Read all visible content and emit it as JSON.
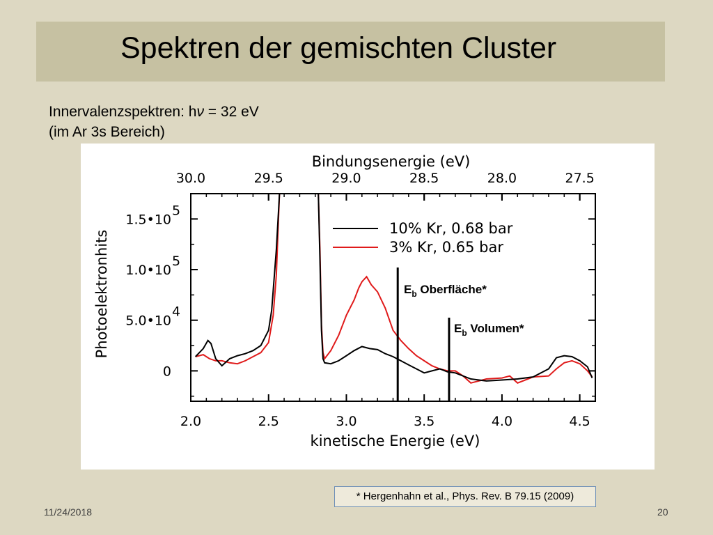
{
  "slide": {
    "title": "Spektren der gemischten Cluster",
    "subtitle_line1_pre": "Innervalenzspektren: h",
    "subtitle_line1_nu": "ν",
    "subtitle_line1_post": " = 32 eV",
    "subtitle_line2": "(im Ar 3s Bereich)",
    "reference": "* Hergenhahn et al., Phys. Rev. B 79.15 (2009)",
    "date": "11/24/2018",
    "page_number": "20"
  },
  "colors": {
    "background": "#ddd8c2",
    "title_bar": "#c6c1a2",
    "series_10": "#000000",
    "series_3": "#e01b1b"
  },
  "chart_data": {
    "type": "line",
    "xlabel": "kinetische Energie (eV)",
    "top_xlabel": "Bindungsenergie (eV)",
    "ylabel": "Photoelektronhits",
    "xlim": [
      2.0,
      4.6
    ],
    "ylim": [
      -30000,
      175000
    ],
    "x_ticks": [
      2.0,
      2.5,
      3.0,
      3.5,
      4.0,
      4.5
    ],
    "x_tick_labels": [
      "2.0",
      "2.5",
      "3.0",
      "3.5",
      "4.0",
      "4.5"
    ],
    "top_ticks": [
      30.0,
      29.5,
      29.0,
      28.5,
      28.0,
      27.5
    ],
    "top_tick_labels": [
      "30.0",
      "29.5",
      "29.0",
      "28.5",
      "28.0",
      "27.5"
    ],
    "top_axis_offset": 32.0,
    "y_ticks": [
      0,
      50000,
      100000,
      150000
    ],
    "y_tick_labels": [
      {
        "mant": "0",
        "exp": ""
      },
      {
        "mant": "5.0•10",
        "exp": "4"
      },
      {
        "mant": "1.0•10",
        "exp": "5"
      },
      {
        "mant": "1.5•10",
        "exp": "5"
      }
    ],
    "legend_position": "top-right",
    "series": [
      {
        "name": "10% Kr, 0.68 bar",
        "color": "#000000",
        "x": [
          2.03,
          2.08,
          2.11,
          2.13,
          2.16,
          2.2,
          2.25,
          2.3,
          2.35,
          2.4,
          2.45,
          2.5,
          2.52,
          2.55,
          2.57,
          2.58,
          2.6,
          2.82,
          2.83,
          2.84,
          2.85,
          2.86,
          2.9,
          2.95,
          3.0,
          3.05,
          3.1,
          3.15,
          3.2,
          3.25,
          3.3,
          3.35,
          3.4,
          3.45,
          3.5,
          3.55,
          3.6,
          3.65,
          3.7,
          3.8,
          3.9,
          4.0,
          4.1,
          4.2,
          4.3,
          4.35,
          4.4,
          4.45,
          4.5,
          4.55,
          4.58
        ],
        "y": [
          14000,
          22000,
          30000,
          27000,
          12000,
          5000,
          12000,
          15000,
          17000,
          20000,
          25000,
          40000,
          60000,
          120000,
          175000,
          175000,
          175000,
          175000,
          110000,
          40000,
          12000,
          8000,
          7000,
          10000,
          15000,
          20000,
          24000,
          22000,
          21000,
          17000,
          14000,
          10000,
          6000,
          2000,
          -2000,
          0,
          2000,
          -1000,
          -2000,
          -8000,
          -10000,
          -9000,
          -8000,
          -6000,
          2000,
          13000,
          15000,
          14000,
          10000,
          4000,
          -7000
        ]
      },
      {
        "name": "3% Kr, 0.65 bar",
        "color": "#e01b1b",
        "x": [
          2.03,
          2.08,
          2.12,
          2.16,
          2.2,
          2.25,
          2.3,
          2.35,
          2.4,
          2.45,
          2.5,
          2.53,
          2.55,
          2.56,
          2.57,
          2.58,
          2.6,
          2.82,
          2.83,
          2.84,
          2.85,
          2.86,
          2.9,
          2.95,
          3.0,
          3.05,
          3.08,
          3.1,
          3.13,
          3.16,
          3.2,
          3.25,
          3.3,
          3.35,
          3.4,
          3.45,
          3.5,
          3.55,
          3.6,
          3.65,
          3.7,
          3.75,
          3.8,
          3.9,
          4.0,
          4.05,
          4.1,
          4.2,
          4.3,
          4.35,
          4.4,
          4.45,
          4.5,
          4.55,
          4.58
        ],
        "y": [
          14000,
          16000,
          12000,
          10000,
          10000,
          8000,
          7000,
          10000,
          14000,
          18000,
          28000,
          55000,
          95000,
          135000,
          175000,
          175000,
          175000,
          175000,
          120000,
          45000,
          18000,
          12000,
          20000,
          35000,
          55000,
          70000,
          82000,
          88000,
          93000,
          85000,
          78000,
          62000,
          40000,
          30000,
          22000,
          15000,
          10000,
          5000,
          2000,
          0,
          0,
          -5000,
          -12000,
          -8000,
          -7000,
          -5000,
          -12000,
          -6000,
          -5000,
          2000,
          8000,
          10000,
          7000,
          0,
          -6000
        ]
      }
    ],
    "annotations": [
      {
        "label_main": "E",
        "label_sub": "b",
        "label_rest": " Oberfläche*",
        "x": 3.33
      },
      {
        "label_main": "E",
        "label_sub": "b",
        "label_rest": " Volumen*",
        "x": 3.66
      }
    ]
  }
}
